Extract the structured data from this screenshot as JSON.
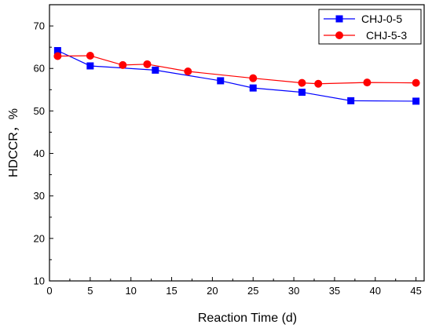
{
  "chart_data": {
    "type": "line",
    "title": "",
    "xlabel": "Reaction Time (d)",
    "ylabel": "HDCCR，%",
    "xlim": [
      0,
      46
    ],
    "ylim": [
      10,
      75
    ],
    "x_ticks": [
      0,
      5,
      10,
      15,
      20,
      25,
      30,
      35,
      40,
      45
    ],
    "y_ticks": [
      10,
      20,
      30,
      40,
      50,
      60,
      70
    ],
    "grid": false,
    "legend_position": "top-right",
    "series": [
      {
        "name": "CHJ-0-5",
        "color": "#0000ff",
        "marker": "square",
        "x": [
          1,
          5,
          13,
          21,
          25,
          31,
          37,
          45
        ],
        "y": [
          64.2,
          60.6,
          59.6,
          57.1,
          55.4,
          54.4,
          52.4,
          52.3
        ]
      },
      {
        "name": "CHJ-5-3",
        "color": "#ff0000",
        "marker": "circle",
        "x": [
          1,
          5,
          9,
          12,
          17,
          25,
          31,
          33,
          39,
          45
        ],
        "y": [
          62.9,
          63.0,
          60.8,
          61.0,
          59.3,
          57.7,
          56.6,
          56.4,
          56.7,
          56.6
        ]
      }
    ]
  }
}
